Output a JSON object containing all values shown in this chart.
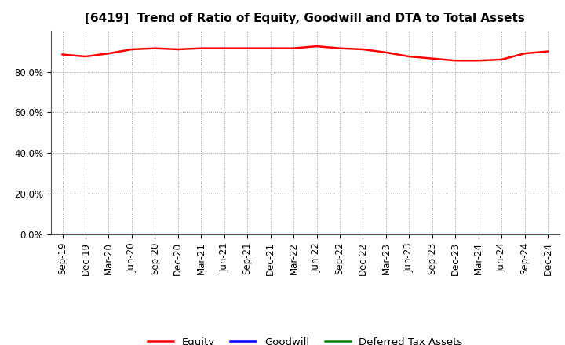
{
  "title": "[6419]  Trend of Ratio of Equity, Goodwill and DTA to Total Assets",
  "x_labels": [
    "Sep-19",
    "Dec-19",
    "Mar-20",
    "Jun-20",
    "Sep-20",
    "Dec-20",
    "Mar-21",
    "Jun-21",
    "Sep-21",
    "Dec-21",
    "Mar-22",
    "Jun-22",
    "Sep-22",
    "Dec-22",
    "Mar-23",
    "Jun-23",
    "Sep-23",
    "Dec-23",
    "Mar-24",
    "Jun-24",
    "Sep-24",
    "Dec-24"
  ],
  "equity": [
    88.5,
    87.5,
    89.0,
    91.0,
    91.5,
    91.0,
    91.5,
    91.5,
    91.5,
    91.5,
    91.5,
    92.5,
    91.5,
    91.0,
    89.5,
    87.5,
    86.5,
    85.5,
    85.5,
    86.0,
    89.0,
    90.0
  ],
  "goodwill": [
    0.0,
    0.0,
    0.0,
    0.0,
    0.0,
    0.0,
    0.0,
    0.0,
    0.0,
    0.0,
    0.0,
    0.0,
    0.0,
    0.0,
    0.0,
    0.0,
    0.0,
    0.0,
    0.0,
    0.0,
    0.0,
    0.0
  ],
  "dta": [
    0.0,
    0.0,
    0.0,
    0.0,
    0.0,
    0.0,
    0.0,
    0.0,
    0.0,
    0.0,
    0.0,
    0.0,
    0.0,
    0.0,
    0.0,
    0.0,
    0.0,
    0.0,
    0.0,
    0.0,
    0.0,
    0.0
  ],
  "equity_color": "#ff0000",
  "goodwill_color": "#0000ff",
  "dta_color": "#008000",
  "ylim": [
    0,
    100
  ],
  "yticks": [
    0,
    20,
    40,
    60,
    80
  ],
  "ytick_labels": [
    "0.0%",
    "20.0%",
    "40.0%",
    "60.0%",
    "80.0%"
  ],
  "background_color": "#ffffff",
  "plot_bg_color": "#ffffff",
  "grid_color": "#999999",
  "title_fontsize": 11,
  "tick_fontsize": 8.5,
  "legend_labels": [
    "Equity",
    "Goodwill",
    "Deferred Tax Assets"
  ]
}
